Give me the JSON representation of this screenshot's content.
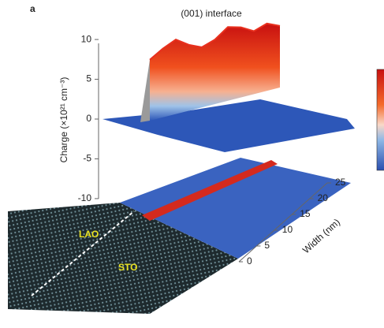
{
  "chart_data": {
    "type": "surface",
    "panel_label": "a",
    "title": "(001) interface",
    "y_label": "Charge (×10²¹ cm⁻³)",
    "x_label": "Width (nm)",
    "ylim": [
      -11,
      11
    ],
    "yticks": [
      10,
      5,
      0,
      -5,
      -10
    ],
    "xlim": [
      0,
      25
    ],
    "xticks": [
      0,
      5,
      10,
      15,
      20,
      25
    ],
    "ridge_values": [
      8.5,
      9.6,
      10.4,
      9.2,
      8.4,
      9.0,
      10.3,
      9.8,
      8.8,
      9.4,
      8.6
    ],
    "annotations": [
      "LAO",
      "STO"
    ],
    "color": "#e8301e",
    "base_color": "#2d57b8"
  }
}
